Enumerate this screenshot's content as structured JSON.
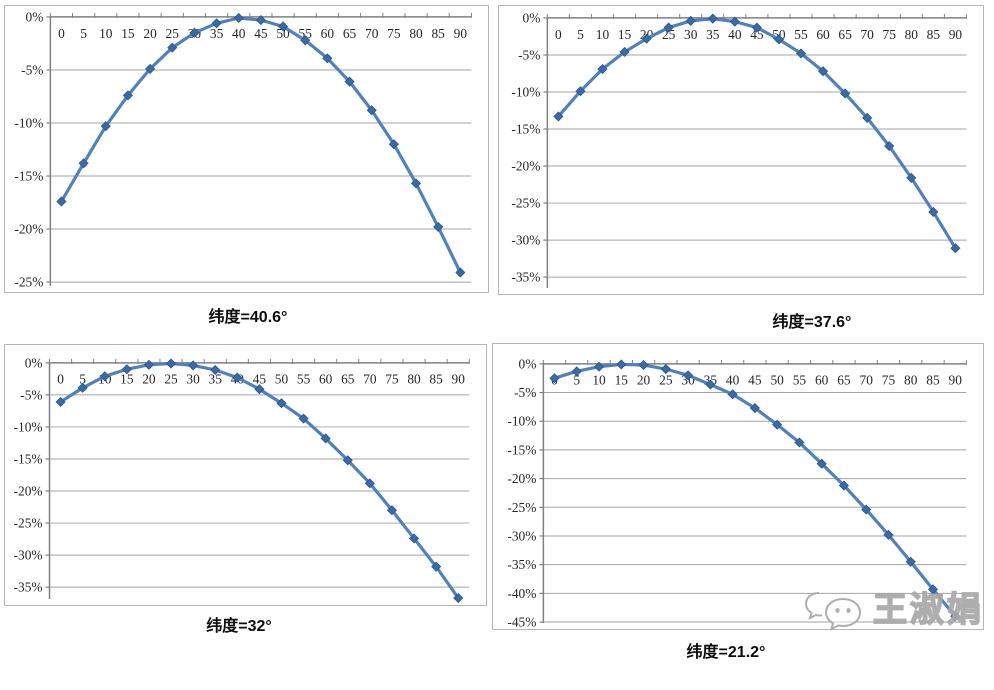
{
  "page": {
    "background": "#ffffff"
  },
  "colors": {
    "line": "#4f81bd",
    "marker": "#3b6ba5",
    "marker_edge": "#2f5b92",
    "grid": "#a3a3a3",
    "axis": "#808080",
    "tick_label": "#262626",
    "title": "#0d0d0d",
    "panel_border": "#b5b5b5"
  },
  "watermark": {
    "text": "王淑娟",
    "icon": "wechat-bubbles-icon"
  },
  "chart_data": [
    {
      "type": "line",
      "title": "纬度=40.6°",
      "xlabel": "",
      "ylabel": "",
      "legend": false,
      "grid": true,
      "marker": "diamond",
      "categories": [
        0,
        5,
        10,
        15,
        20,
        25,
        30,
        35,
        40,
        45,
        50,
        55,
        60,
        65,
        70,
        75,
        80,
        85,
        90
      ],
      "values": [
        -17.4,
        -13.8,
        -10.3,
        -7.4,
        -4.9,
        -2.9,
        -1.5,
        -0.6,
        -0.1,
        -0.3,
        -0.9,
        -2.2,
        -3.9,
        -6.1,
        -8.8,
        -12.0,
        -15.7,
        -19.8,
        -24.1
      ],
      "ylim": [
        -25,
        0
      ],
      "y_ticks": [
        0,
        -5,
        -10,
        -15,
        -20,
        -25
      ],
      "y_tick_labels": [
        "0%",
        "-5%",
        "-10%",
        "-15%",
        "-20%",
        "-25%"
      ]
    },
    {
      "type": "line",
      "title": "纬度=37.6°",
      "xlabel": "",
      "ylabel": "",
      "legend": false,
      "grid": true,
      "marker": "diamond",
      "categories": [
        0,
        5,
        10,
        15,
        20,
        25,
        30,
        35,
        40,
        45,
        50,
        55,
        60,
        65,
        70,
        75,
        80,
        85,
        90
      ],
      "values": [
        -13.3,
        -9.9,
        -6.9,
        -4.6,
        -2.8,
        -1.3,
        -0.4,
        -0.1,
        -0.5,
        -1.3,
        -2.9,
        -4.8,
        -7.2,
        -10.2,
        -13.5,
        -17.3,
        -21.6,
        -26.2,
        -31.1
      ],
      "ylim": [
        -35,
        0
      ],
      "y_ticks": [
        0,
        -5,
        -10,
        -15,
        -20,
        -25,
        -30,
        -35
      ],
      "y_tick_labels": [
        "0%",
        "-5%",
        "-10%",
        "-15%",
        "-20%",
        "-25%",
        "-30%",
        "-35%"
      ]
    },
    {
      "type": "line",
      "title": "纬度=32°",
      "xlabel": "",
      "ylabel": "",
      "legend": false,
      "grid": true,
      "marker": "diamond",
      "categories": [
        0,
        5,
        10,
        15,
        20,
        25,
        30,
        35,
        40,
        45,
        50,
        55,
        60,
        65,
        70,
        75,
        80,
        85,
        90
      ],
      "values": [
        -6.1,
        -3.9,
        -2.1,
        -1.0,
        -0.3,
        -0.1,
        -0.4,
        -1.1,
        -2.3,
        -4.1,
        -6.3,
        -8.7,
        -11.8,
        -15.2,
        -18.8,
        -23.0,
        -27.4,
        -31.8,
        -36.7
      ],
      "ylim": [
        -35,
        0
      ],
      "y_ticks": [
        0,
        -5,
        -10,
        -15,
        -20,
        -25,
        -30,
        -35
      ],
      "y_tick_labels": [
        "0%",
        "-5%",
        "-10%",
        "-15%",
        "-20%",
        "-25%",
        "-30%",
        "-35%"
      ]
    },
    {
      "type": "line",
      "title": "纬度=21.2°",
      "xlabel": "",
      "ylabel": "",
      "legend": false,
      "grid": true,
      "marker": "diamond",
      "categories": [
        0,
        5,
        10,
        15,
        20,
        25,
        30,
        35,
        40,
        45,
        50,
        55,
        60,
        65,
        70,
        75,
        80,
        85,
        90
      ],
      "values": [
        -2.5,
        -1.3,
        -0.5,
        -0.1,
        -0.2,
        -0.9,
        -2.0,
        -3.6,
        -5.3,
        -7.7,
        -10.6,
        -13.7,
        -17.4,
        -21.2,
        -25.4,
        -29.8,
        -34.5,
        -39.3,
        -44.0
      ],
      "ylim": [
        -45,
        0
      ],
      "y_ticks": [
        0,
        -5,
        -10,
        -15,
        -20,
        -25,
        -30,
        -35,
        -40,
        -45
      ],
      "y_tick_labels": [
        "0%",
        "-5%",
        "-10%",
        "-15%",
        "-20%",
        "-25%",
        "-30%",
        "-35%",
        "-40%",
        "-45%"
      ]
    }
  ]
}
